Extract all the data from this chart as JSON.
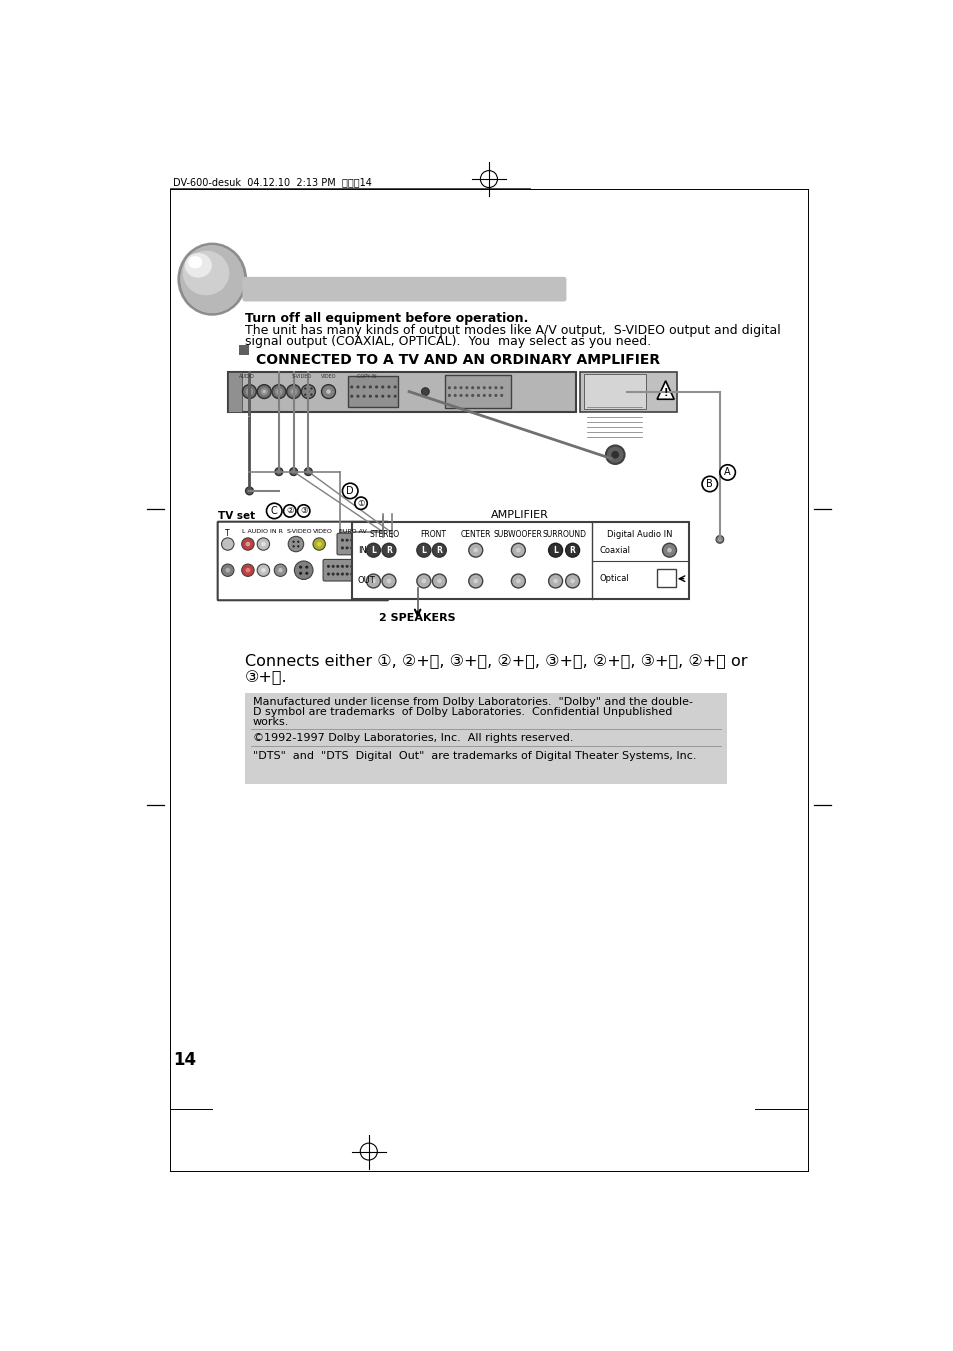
{
  "page_bg": "#ffffff",
  "header_text": "DV-600-desuk  04.12.10  2:13 PM  페이지14",
  "intro_line1": "Turn off all equipment before operation.",
  "intro_line2": "The unit has many kinds of output modes like A/V output,  S-VIDEO output and digital",
  "intro_line3": "signal output (COAXIAL, OPTICAL).  You  may select as you need.",
  "section_title": "CONNECTED TO A TV AND AN ORDINARY AMPLIFIER",
  "connects_line1": "Connects either ①, ②+Ⓐ, ③+Ⓐ, ②+Ⓑ, ③+Ⓑ, ②+Ⓒ, ③+Ⓒ, ②+Ⓓ or",
  "connects_line2": "③+Ⓓ.",
  "disc1": "Manufactured under license from Dolby Laboratories.  \"Dolby\" and the double-",
  "disc2": "D symbol are trademarks  of Dolby Laboratories.  Confidential Unpublished",
  "disc3": "works.",
  "disc4": "©1992-1997 Dolby Laboratories, Inc.  All rights reserved.",
  "disc5": "\"DTS\"  and  \"DTS  Digital  Out\"  are trademarks of Digital Theater Systems, Inc.",
  "page_number": "14",
  "disc_bg": "#d0d0d0",
  "bar_color": "#c0c0c0",
  "ball_dark": "#a0a0a0",
  "ball_mid": "#c8c8c8",
  "ball_light": "#e8e8e8"
}
